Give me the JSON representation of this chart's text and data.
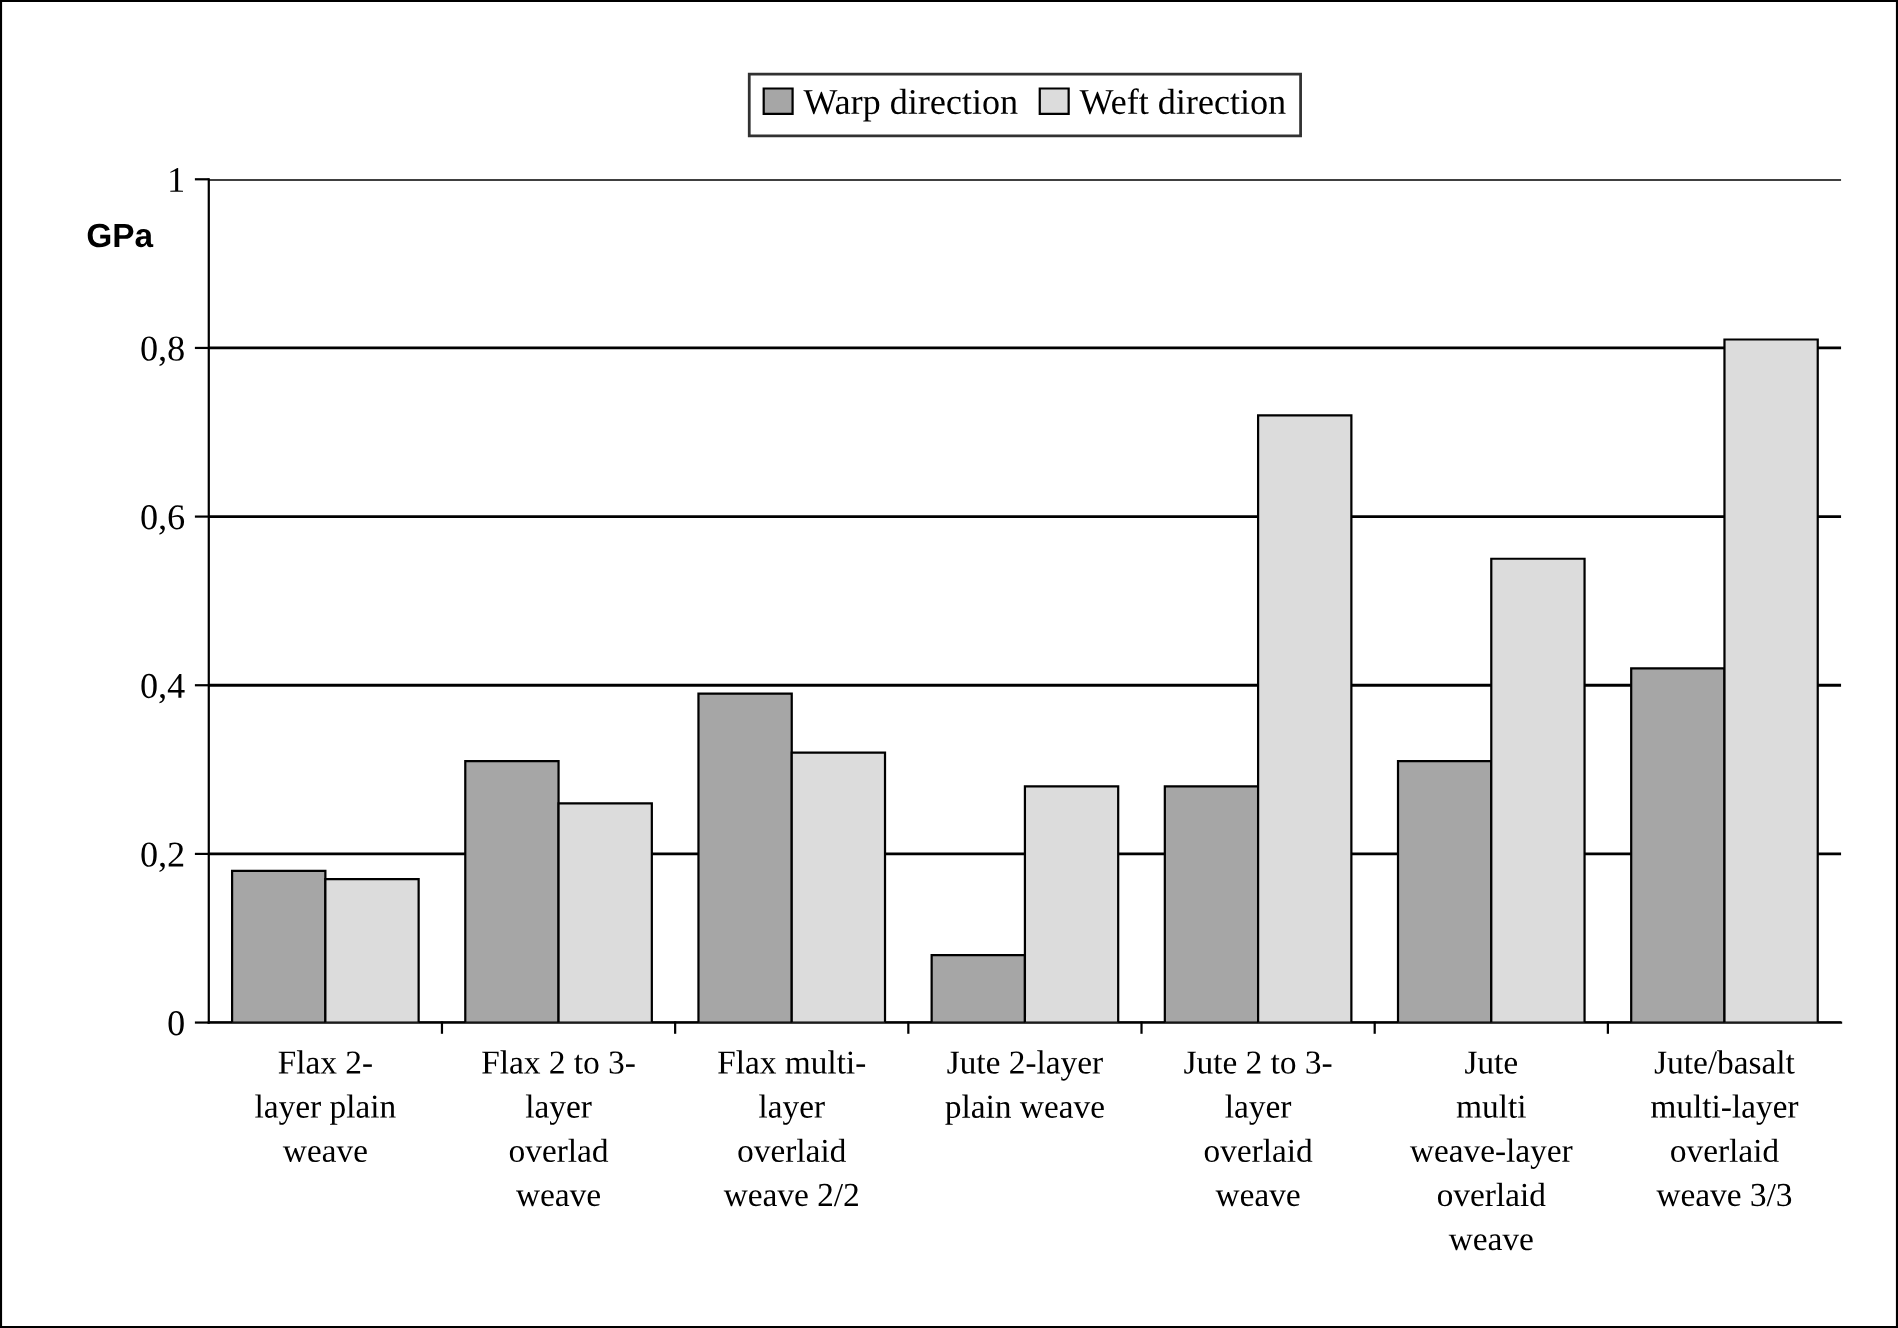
{
  "chart_data": {
    "type": "bar",
    "ylabel": "GPa",
    "categories": [
      "Flax 2-\nlayer plain\nweave",
      "Flax 2 to 3-\nlayer\noverlad\nweave",
      "Flax multi-\nlayer\noverlaid\nweave 2/2",
      "Jute 2-layer\nplain weave",
      "Jute 2 to 3-\nlayer\noverlaid\nweave",
      "Jute\nmulti\nweave-layer\noverlaid\nweave",
      "Jute/basalt\nmulti-layer\noverlaid\nweave 3/3"
    ],
    "series": [
      {
        "name": "Warp direction",
        "color": "#a6a6a6",
        "values": [
          0.18,
          0.31,
          0.39,
          0.08,
          0.28,
          0.31,
          0.42
        ]
      },
      {
        "name": "Weft direction",
        "color": "#dcdcdc",
        "values": [
          0.17,
          0.26,
          0.32,
          0.28,
          0.72,
          0.55,
          0.81
        ]
      }
    ],
    "ylim": [
      0,
      1
    ],
    "yticks": [
      0,
      {
        "value": 0.2,
        "label": "0,2"
      },
      {
        "value": 0.4,
        "label": "0,4"
      },
      {
        "value": 0.6,
        "label": "0,6"
      },
      {
        "value": 0.8,
        "label": "0,8"
      },
      1
    ],
    "grid": "y",
    "legend": "top"
  }
}
